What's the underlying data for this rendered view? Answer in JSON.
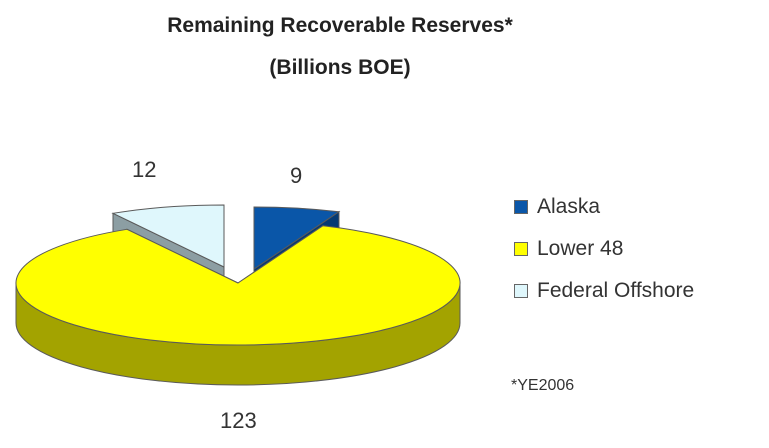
{
  "chart_data": {
    "type": "pie",
    "title": "Remaining Recoverable Reserves*",
    "subtitle": "(Billions BOE)",
    "categories": [
      "Alaska",
      "Lower 48",
      "Federal Offshore"
    ],
    "values": [
      9,
      123,
      12
    ],
    "colors": [
      "#0a56a8",
      "#ffff00",
      "#dff7fc"
    ],
    "side_colors": [
      "#063a73",
      "#a3a300",
      "#8c9ea3"
    ],
    "legend_position": "right",
    "footnote": "*YE2006",
    "exploded": [
      "Alaska",
      "Federal Offshore"
    ]
  }
}
